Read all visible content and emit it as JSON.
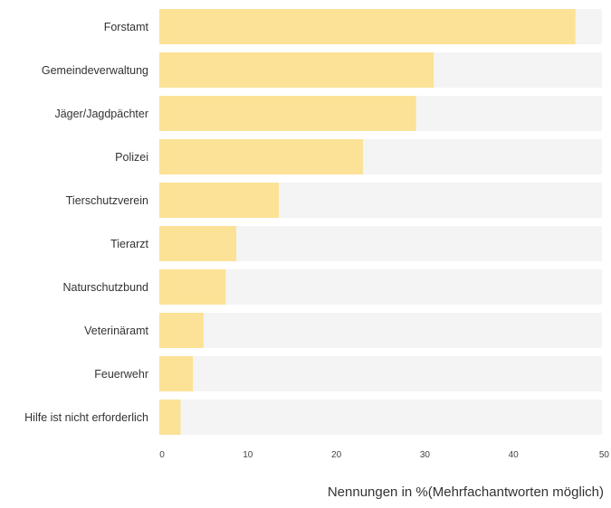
{
  "chart_data": {
    "type": "bar",
    "orientation": "horizontal",
    "categories": [
      "Forstamt",
      "Gemeindeverwaltung",
      "Jäger/Jagdpächter",
      "Polizei",
      "Tierschutzverein",
      "Tierarzt",
      "Naturschutzbund",
      "Veterinäramt",
      "Feuerwehr",
      "Hilfe ist nicht erforderlich"
    ],
    "values": [
      47,
      31,
      29,
      23,
      13.5,
      8.7,
      7.5,
      5,
      3.8,
      2.4
    ],
    "xlim": [
      0,
      50
    ],
    "xticks": [
      0,
      10,
      20,
      30,
      40,
      50
    ],
    "xlabel": "Nennungen in %(Mehrfachantworten möglich)",
    "grid": false,
    "colors": {
      "bar": "#fbe296",
      "track": "#f4f4f4"
    }
  }
}
